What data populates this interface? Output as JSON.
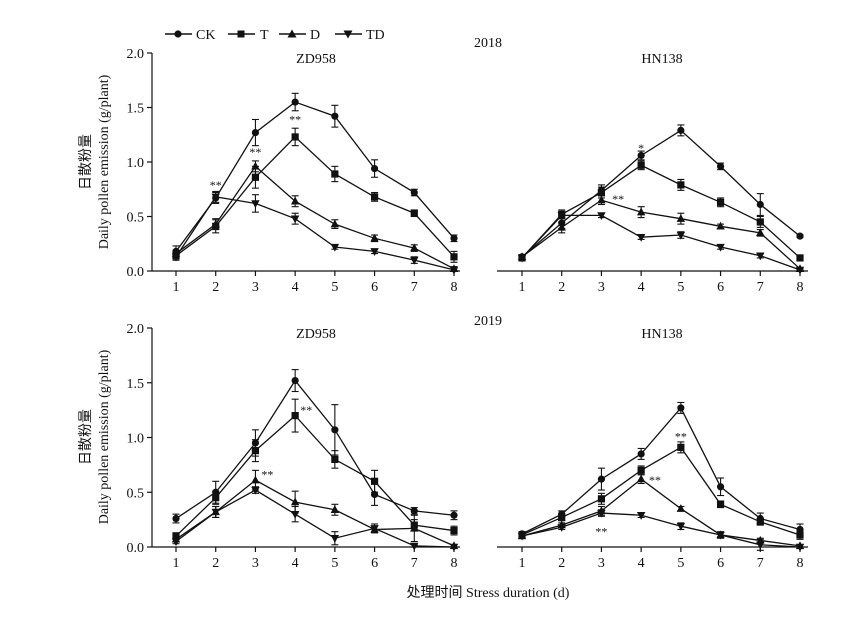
{
  "legend": {
    "items": [
      {
        "label": "CK",
        "marker": "circle"
      },
      {
        "label": "T",
        "marker": "square"
      },
      {
        "label": "D",
        "marker": "triangle-up"
      },
      {
        "label": "TD",
        "marker": "triangle-down"
      }
    ]
  },
  "x_axis_title": "处理时间 Stress duration (d)",
  "y_axis_title_cn": "日散粉量",
  "y_axis_title_en": "Daily pollen emission (g/plant)",
  "years": [
    "2018",
    "2019"
  ],
  "colors": {
    "ink": "#111111"
  },
  "chart_data": [
    {
      "type": "line",
      "year": "2018",
      "title": "ZD958",
      "x": [
        1,
        2,
        3,
        4,
        5,
        6,
        7,
        8
      ],
      "ylim": [
        0,
        2.0
      ],
      "yticks": [
        0,
        0.5,
        1.0,
        1.5,
        2.0
      ],
      "series": [
        {
          "name": "CK",
          "values": [
            0.18,
            0.67,
            1.27,
            1.55,
            1.42,
            0.94,
            0.72,
            0.3
          ],
          "err": [
            0.05,
            0.05,
            0.12,
            0.08,
            0.1,
            0.08,
            0.03,
            0.03
          ]
        },
        {
          "name": "T",
          "values": [
            0.14,
            0.41,
            0.86,
            1.23,
            0.89,
            0.68,
            0.53,
            0.13
          ],
          "err": [
            0.04,
            0.06,
            0.1,
            0.08,
            0.07,
            0.04,
            0.03,
            0.05
          ]
        },
        {
          "name": "D",
          "values": [
            0.16,
            0.43,
            0.96,
            0.64,
            0.43,
            0.3,
            0.21,
            0.02
          ],
          "err": [
            0.03,
            0.05,
            0.05,
            0.05,
            0.04,
            0.03,
            0.03,
            0.02
          ]
        },
        {
          "name": "TD",
          "values": [
            0.13,
            0.68,
            0.62,
            0.48,
            0.22,
            0.18,
            0.1,
            0.01
          ],
          "err": [
            0.03,
            0.05,
            0.08,
            0.05,
            0.02,
            0.02,
            0.03,
            0.01
          ]
        }
      ],
      "annotations": [
        {
          "x": 2,
          "y": 0.79,
          "text": "**"
        },
        {
          "x": 3,
          "y": 1.09,
          "text": "**"
        },
        {
          "x": 4,
          "y": 1.39,
          "text": "**"
        }
      ]
    },
    {
      "type": "line",
      "year": "2018",
      "title": "HN138",
      "x": [
        1,
        2,
        3,
        4,
        5,
        6,
        7,
        8
      ],
      "ylim": [
        0,
        2.0
      ],
      "yticks": [
        0,
        0.5,
        1.0,
        1.5,
        2.0
      ],
      "series": [
        {
          "name": "CK",
          "values": [
            0.13,
            0.44,
            0.74,
            1.06,
            1.29,
            0.96,
            0.61,
            0.32
          ],
          "err": [
            0.02,
            0.05,
            0.05,
            0.04,
            0.05,
            0.03,
            0.1,
            0.01
          ]
        },
        {
          "name": "T",
          "values": [
            0.12,
            0.52,
            0.72,
            0.97,
            0.79,
            0.63,
            0.45,
            0.12
          ],
          "err": [
            0.02,
            0.04,
            0.05,
            0.04,
            0.05,
            0.04,
            0.05,
            0.01
          ]
        },
        {
          "name": "D",
          "values": [
            0.13,
            0.4,
            0.65,
            0.54,
            0.48,
            0.41,
            0.35,
            0.02
          ],
          "err": [
            0.02,
            0.05,
            0.04,
            0.05,
            0.05,
            0.02,
            0.03,
            0.01
          ]
        },
        {
          "name": "TD",
          "values": [
            0.12,
            0.51,
            0.51,
            0.31,
            0.33,
            0.22,
            0.14,
            0.01
          ],
          "err": [
            0.02,
            0.03,
            0.02,
            0.02,
            0.03,
            0.02,
            0.02,
            0.01
          ]
        }
      ],
      "annotations": [
        {
          "x": 4,
          "y": 1.13,
          "text": "*"
        },
        {
          "x": 3.42,
          "y": 0.66,
          "text": "**"
        }
      ]
    },
    {
      "type": "line",
      "year": "2019",
      "title": "ZD958",
      "x": [
        1,
        2,
        3,
        4,
        5,
        6,
        7,
        8
      ],
      "ylim": [
        0,
        2.0
      ],
      "yticks": [
        0,
        0.5,
        1.0,
        1.5,
        2.0
      ],
      "series": [
        {
          "name": "CK",
          "values": [
            0.26,
            0.5,
            0.95,
            1.52,
            1.07,
            0.48,
            0.33,
            0.29
          ],
          "err": [
            0.04,
            0.1,
            0.12,
            0.1,
            0.23,
            0.1,
            0.03,
            0.04
          ]
        },
        {
          "name": "T",
          "values": [
            0.1,
            0.45,
            0.88,
            1.2,
            0.8,
            0.6,
            0.2,
            0.15
          ],
          "err": [
            0.03,
            0.06,
            0.1,
            0.15,
            0.08,
            0.1,
            0.05,
            0.04
          ]
        },
        {
          "name": "D",
          "values": [
            0.07,
            0.32,
            0.61,
            0.41,
            0.34,
            0.16,
            0.17,
            0.01
          ],
          "err": [
            0.02,
            0.05,
            0.09,
            0.1,
            0.05,
            0.03,
            0.12,
            0.01
          ]
        },
        {
          "name": "TD",
          "values": [
            0.05,
            0.32,
            0.52,
            0.3,
            0.08,
            0.17,
            0.01,
            0.0
          ],
          "err": [
            0.02,
            0.05,
            0.03,
            0.07,
            0.06,
            0.04,
            0.01,
            0.0
          ]
        }
      ],
      "annotations": [
        {
          "x": 4.28,
          "y": 1.25,
          "text": "**"
        },
        {
          "x": 3.3,
          "y": 0.66,
          "text": "**"
        }
      ]
    },
    {
      "type": "line",
      "year": "2019",
      "title": "HN138",
      "x": [
        1,
        2,
        3,
        4,
        5,
        6,
        7,
        8
      ],
      "ylim": [
        0,
        2.0
      ],
      "yticks": [
        0,
        0.5,
        1.0,
        1.5,
        2.0
      ],
      "series": [
        {
          "name": "CK",
          "values": [
            0.12,
            0.3,
            0.62,
            0.85,
            1.27,
            0.55,
            0.26,
            0.16
          ],
          "err": [
            0.02,
            0.03,
            0.1,
            0.05,
            0.05,
            0.08,
            0.05,
            0.05
          ]
        },
        {
          "name": "T",
          "values": [
            0.11,
            0.27,
            0.44,
            0.7,
            0.91,
            0.39,
            0.23,
            0.11
          ],
          "err": [
            0.02,
            0.03,
            0.05,
            0.04,
            0.05,
            0.03,
            0.03,
            0.04
          ]
        },
        {
          "name": "D",
          "values": [
            0.1,
            0.2,
            0.33,
            0.62,
            0.35,
            0.11,
            0.06,
            0.01
          ],
          "err": [
            0.02,
            0.02,
            0.04,
            0.04,
            0.02,
            0.03,
            0.02,
            0.01
          ]
        },
        {
          "name": "TD",
          "values": [
            0.1,
            0.18,
            0.31,
            0.29,
            0.19,
            0.11,
            0.02,
            0.0
          ],
          "err": [
            0.02,
            0.02,
            0.03,
            0.02,
            0.03,
            0.02,
            0.05,
            0.0
          ]
        }
      ],
      "annotations": [
        {
          "x": 5,
          "y": 1.01,
          "text": "**"
        },
        {
          "x": 4.35,
          "y": 0.61,
          "text": "**"
        },
        {
          "x": 3,
          "y": 0.14,
          "text": "**"
        }
      ]
    }
  ]
}
